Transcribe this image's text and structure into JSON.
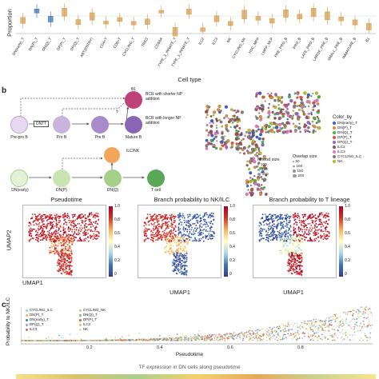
{
  "panel_a": {
    "ylabel": "Proportion",
    "xlabel": "Cell type",
    "categories": [
      "DN(early)_T",
      "DN(P)_T",
      "DN(Q)_T",
      "DP(P)_T",
      "DP(Q)_T",
      "ABT(ENTRY)",
      "CD4+T",
      "CD8+T",
      "CYCLING_T",
      "TREG",
      "CD8AA",
      "TYPE_3_INNATE_T",
      "TYPE_1_INNATE_T",
      "ILC2",
      "ILC3",
      "NK",
      "CYCLING_NK",
      "HSC_MPP",
      "LMPP_MLP",
      "PRE_PRO_B",
      "PRO_B",
      "LATE_PRO_B",
      "LARGE_PRE_B",
      "SMALL_PRE_B",
      "IMMATURE_B",
      "B1"
    ]
  },
  "panel_b": {
    "letter": "b",
    "b_lineage": [
      "Pre-pro B",
      "Pro B",
      "Pre B",
      "Mature B",
      "B1"
    ],
    "dntt_label": "DNTT",
    "bcr_shorter": "BCR with shorter NP addition",
    "bcr_longer": "BCR with longer NP addition",
    "question_mark": "?",
    "t_lineage": [
      "DN(early)",
      "DN(P)",
      "DN(Q)",
      "ILC/NK",
      "T cell"
    ],
    "color_by_title": "Color_by",
    "color_by": [
      {
        "label": "DN(early)_T",
        "color": "#3a5fcd"
      },
      {
        "label": "DN(P)_T",
        "color": "#d98f3b"
      },
      {
        "label": "DN(Q)_T",
        "color": "#4caf50"
      },
      {
        "label": "DP(P)_T",
        "color": "#d94f4f"
      },
      {
        "label": "DP(Q)_T",
        "color": "#9467bd"
      },
      {
        "label": "ILC2",
        "color": "#8c564b"
      },
      {
        "label": "ILC3",
        "color": "#e377c2"
      },
      {
        "label": "CYCLING_ILC",
        "color": "#7f7f7f"
      },
      {
        "label": "NK",
        "color": "#bcbd22"
      }
    ],
    "nhood_title": "Nhood size",
    "nhood_sizes": [
      "100",
      "150",
      "200"
    ],
    "overlap_title": "Overlap size",
    "overlap_sizes": [
      "50",
      "100",
      "150",
      "200"
    ],
    "umap_titles": [
      "Pseudotime",
      "Branch probability to NK/ILC",
      "Branch probability to T lineage"
    ],
    "umap_xlabel": "UMAP1",
    "umap_ylabel": "UMAP2",
    "colorbar_ticks": [
      "1.0",
      "0.8",
      "0.6",
      "0.4",
      "0.2",
      "0"
    ]
  },
  "panel_c": {
    "letter": "c",
    "ylabel": "Probability to NK/ILC",
    "xlabel": "Pseudotime",
    "xticks": [
      "0.2",
      "0.4",
      "0.6",
      "0.8"
    ],
    "legend": [
      {
        "label": "CYCLING_ILC",
        "color": "#9ecae1"
      },
      {
        "label": "CYCLING_NK",
        "color": "#b5cf6b"
      },
      {
        "label": "DN(P)_T",
        "color": "#fdae6b"
      },
      {
        "label": "DN(Q)_T",
        "color": "#74c476"
      },
      {
        "label": "DN(early)_T",
        "color": "#3182bd"
      },
      {
        "label": "DP(P)_T",
        "color": "#e6550d"
      },
      {
        "label": "DP(Q)_T",
        "color": "#9e9ac8"
      },
      {
        "label": "ILC2",
        "color": "#e7ba52"
      },
      {
        "label": "ILC3",
        "color": "#d6616b"
      },
      {
        "label": "NK",
        "color": "#c7e9c0"
      }
    ],
    "footer": "TF expression in DN cells along pseudotime"
  },
  "colors": {
    "box_blue": "#3a6fb0",
    "box_orange": "#d39a4a",
    "colormap": [
      "#313695",
      "#4575b4",
      "#abd9e9",
      "#ffffbf",
      "#fdae61",
      "#d73027",
      "#a50026"
    ]
  }
}
